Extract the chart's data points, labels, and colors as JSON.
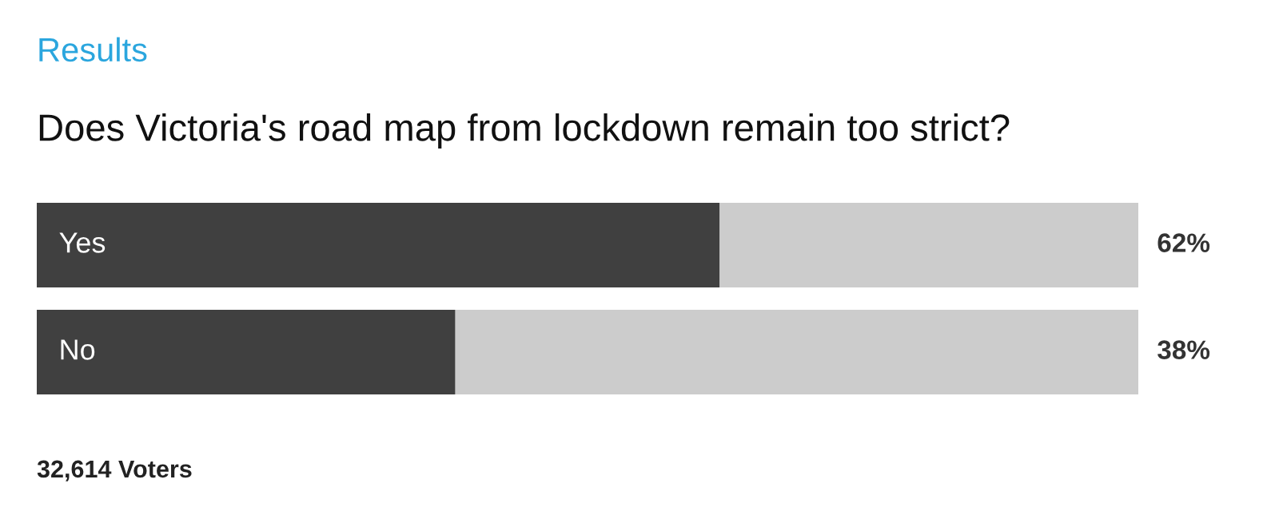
{
  "chart_data": {
    "type": "bar",
    "orientation": "horizontal",
    "stacked": true,
    "title": "Results",
    "subtitle": "Does Victoria's road map from lockdown remain too strict?",
    "categories": [
      "Yes",
      "No"
    ],
    "series": [
      {
        "color": "#404040",
        "values": [
          62,
          38
        ],
        "value_labels": [
          "62%",
          "38%"
        ]
      },
      {
        "color": "#cccccc",
        "values": [
          38,
          62
        ]
      }
    ],
    "xlim": [
      0,
      100
    ],
    "annotations": [
      "32,614 Voters"
    ]
  }
}
